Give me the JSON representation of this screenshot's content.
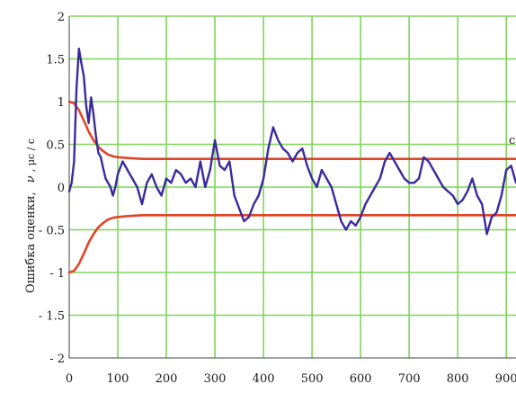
{
  "chart_data": {
    "type": "line",
    "title": "",
    "xlabel": "",
    "ylabel": "Ошибка оценки, ν_τ − ν̂_τ, μс/с",
    "ylabel_text": "Ошибка оценки,",
    "ylabel_math": "ν",
    "ylabel_rest": ", μс / с",
    "xlim": [
      0,
      920
    ],
    "ylim": [
      -2,
      2
    ],
    "x_ticks": [
      0,
      100,
      200,
      300,
      400,
      500,
      600,
      700,
      800,
      900
    ],
    "x_tick_labels": [
      "0",
      "100",
      "200",
      "300",
      "400",
      "500",
      "600",
      "700",
      "800",
      "900"
    ],
    "y_ticks": [
      2,
      1.5,
      1,
      0.5,
      0,
      -0.5,
      -1,
      -1.5,
      -2
    ],
    "y_tick_labels": [
      "2",
      "1.5",
      "1",
      "0.5",
      "0",
      "- 0.5",
      "- 1",
      "- 1.5",
      "- 2"
    ],
    "grid": true,
    "grid_color": "#7fd65a",
    "partial_label": "с",
    "series": [
      {
        "color": "#3b2a9e",
        "x": [
          0,
          5,
          10,
          15,
          20,
          25,
          30,
          35,
          40,
          45,
          50,
          55,
          60,
          65,
          70,
          75,
          80,
          85,
          90,
          95,
          100,
          110,
          120,
          130,
          140,
          150,
          160,
          170,
          180,
          190,
          200,
          210,
          220,
          230,
          240,
          250,
          260,
          270,
          280,
          290,
          300,
          310,
          320,
          330,
          340,
          350,
          360,
          370,
          380,
          390,
          400,
          410,
          420,
          430,
          440,
          450,
          460,
          470,
          480,
          490,
          500,
          510,
          520,
          530,
          540,
          550,
          560,
          570,
          580,
          590,
          600,
          610,
          620,
          630,
          640,
          650,
          660,
          670,
          680,
          690,
          700,
          710,
          720,
          730,
          740,
          750,
          760,
          770,
          780,
          790,
          800,
          810,
          820,
          830,
          840,
          850,
          860,
          870,
          880,
          890,
          900,
          910,
          920
        ],
        "values": [
          -0.05,
          0.05,
          0.3,
          1.15,
          1.62,
          1.45,
          1.3,
          0.95,
          0.75,
          1.05,
          0.85,
          0.6,
          0.4,
          0.35,
          0.22,
          0.1,
          0.05,
          0.0,
          -0.1,
          0.0,
          0.15,
          0.3,
          0.2,
          0.1,
          0.0,
          -0.2,
          0.05,
          0.15,
          0.0,
          -0.1,
          0.1,
          0.05,
          0.2,
          0.15,
          0.05,
          0.1,
          0.0,
          0.3,
          0.0,
          0.2,
          0.55,
          0.25,
          0.2,
          0.3,
          -0.1,
          -0.25,
          -0.4,
          -0.35,
          -0.2,
          -0.1,
          0.1,
          0.45,
          0.7,
          0.55,
          0.45,
          0.4,
          0.3,
          0.4,
          0.45,
          0.25,
          0.1,
          0.0,
          0.2,
          0.1,
          0.0,
          -0.2,
          -0.4,
          -0.5,
          -0.4,
          -0.45,
          -0.35,
          -0.2,
          -0.1,
          0.0,
          0.1,
          0.3,
          0.4,
          0.3,
          0.2,
          0.1,
          0.05,
          0.05,
          0.1,
          0.35,
          0.3,
          0.2,
          0.1,
          0.0,
          -0.05,
          -0.1,
          -0.2,
          -0.15,
          -0.05,
          0.1,
          -0.1,
          -0.2,
          -0.55,
          -0.35,
          -0.3,
          -0.1,
          0.2,
          0.25,
          0.05
        ]
      },
      {
        "color": "#e0452a",
        "x": [
          0,
          10,
          20,
          30,
          40,
          50,
          60,
          70,
          80,
          90,
          100,
          120,
          150,
          200,
          300,
          400,
          500,
          600,
          700,
          800,
          920
        ],
        "values": [
          1.0,
          0.98,
          0.9,
          0.78,
          0.65,
          0.55,
          0.47,
          0.42,
          0.38,
          0.36,
          0.35,
          0.34,
          0.33,
          0.33,
          0.33,
          0.33,
          0.33,
          0.33,
          0.33,
          0.33,
          0.33
        ]
      },
      {
        "color": "#e0452a",
        "x": [
          0,
          10,
          20,
          30,
          40,
          50,
          60,
          70,
          80,
          90,
          100,
          120,
          150,
          200,
          300,
          400,
          500,
          600,
          700,
          800,
          920
        ],
        "values": [
          -1.0,
          -0.98,
          -0.9,
          -0.78,
          -0.65,
          -0.55,
          -0.47,
          -0.42,
          -0.38,
          -0.36,
          -0.35,
          -0.34,
          -0.33,
          -0.33,
          -0.33,
          -0.33,
          -0.33,
          -0.33,
          -0.33,
          -0.33,
          -0.33
        ]
      }
    ]
  }
}
